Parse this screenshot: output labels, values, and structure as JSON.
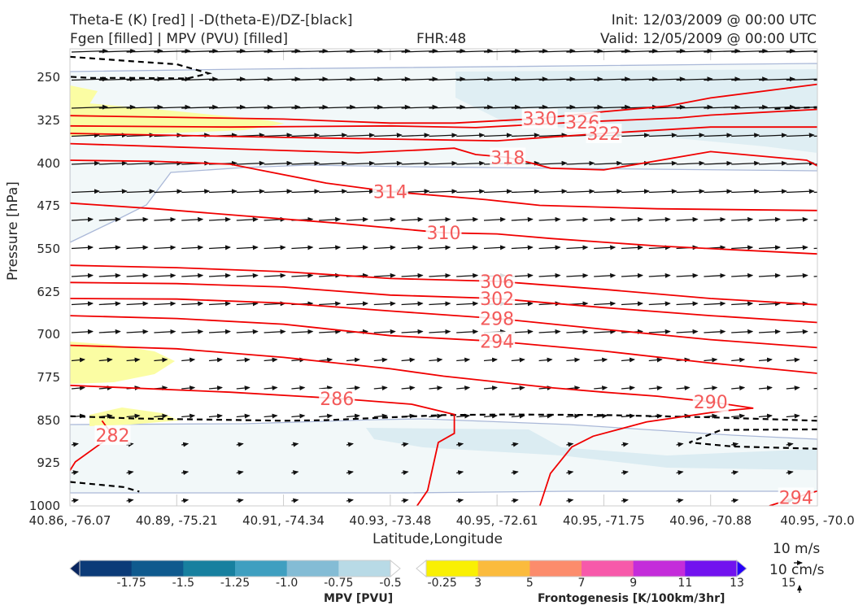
{
  "header": {
    "title_line1": "Theta-E (K) [red] | -D(theta-E)/DZ-[black]",
    "title_line2": "Fgen [filled] | MPV (PVU) [filled]",
    "fhr": "FHR:48",
    "init": "Init: 12/03/2009 @ 00:00 UTC",
    "valid": "Valid: 12/05/2009 @ 00:00 UTC"
  },
  "chart_data": {
    "type": "cross-section",
    "xlabel": "Latitude,Longitude",
    "ylabel": "Pressure [hPa]",
    "y_scale": "linear, inverted",
    "ylim": [
      1000,
      200
    ],
    "y_ticks": [
      "250",
      "325",
      "400",
      "475",
      "550",
      "625",
      "700",
      "775",
      "850",
      "925",
      "1000"
    ],
    "x_ticks": [
      "40.86, -76.07",
      "40.89, -75.21",
      "40.91, -74.34",
      "40.93, -73.48",
      "40.95, -72.61",
      "40.95, -71.75",
      "40.96, -70.88",
      "40.95, -70.0"
    ],
    "theta_e_contours": [
      {
        "label": "330",
        "pts": [
          [
            0,
            317
          ],
          [
            2,
            323
          ],
          [
            3,
            330
          ],
          [
            3.6,
            330
          ],
          [
            4.4,
            322
          ],
          [
            5,
            310
          ],
          [
            5.6,
            300
          ],
          [
            6,
            286
          ],
          [
            7,
            262
          ]
        ]
      },
      {
        "label": "326",
        "pts": [
          [
            0,
            335
          ],
          [
            1.5,
            337
          ],
          [
            3,
            335
          ],
          [
            3.8,
            338
          ],
          [
            4.8,
            328
          ],
          [
            5.7,
            321
          ],
          [
            6,
            316
          ],
          [
            7,
            306
          ]
        ]
      },
      {
        "label": "322",
        "pts": [
          [
            0,
            348
          ],
          [
            2,
            355
          ],
          [
            4,
            361
          ],
          [
            5,
            348
          ],
          [
            6,
            337
          ],
          [
            7,
            337
          ]
        ]
      },
      {
        "label": "318",
        "pts": [
          [
            0,
            366
          ],
          [
            1,
            372
          ],
          [
            2,
            378
          ],
          [
            2.7,
            382
          ],
          [
            3.3,
            377
          ],
          [
            3.6,
            374
          ],
          [
            3.8,
            385
          ],
          [
            4.1,
            390
          ],
          [
            4.3,
            399
          ],
          [
            4.5,
            409
          ],
          [
            5,
            412
          ],
          [
            6,
            380
          ],
          [
            6.9,
            395
          ],
          [
            7,
            405
          ]
        ]
      },
      {
        "label": "314",
        "pts": [
          [
            0,
            395
          ],
          [
            0.8,
            397
          ],
          [
            1.5,
            402
          ],
          [
            1.8,
            413
          ],
          [
            2.4,
            435
          ],
          [
            3,
            450
          ],
          [
            3.9,
            464
          ],
          [
            4.4,
            474
          ],
          [
            5.5,
            480
          ],
          [
            7,
            483
          ]
        ]
      },
      {
        "label": "310",
        "pts": [
          [
            0,
            470
          ],
          [
            0.8,
            480
          ],
          [
            1.6,
            492
          ],
          [
            2.5,
            505
          ],
          [
            3.5,
            522
          ],
          [
            4,
            524
          ],
          [
            4.5,
            532
          ],
          [
            5.5,
            545
          ],
          [
            7,
            559
          ]
        ]
      },
      {
        "label": "306",
        "pts": [
          [
            0,
            579
          ],
          [
            1,
            583
          ],
          [
            2,
            590
          ],
          [
            3,
            602
          ],
          [
            4,
            607
          ],
          [
            5,
            621
          ],
          [
            6,
            637
          ],
          [
            7,
            648
          ]
        ]
      },
      {
        "label": "302",
        "pts": [
          [
            0,
            609
          ],
          [
            1,
            611
          ],
          [
            2,
            617
          ],
          [
            3,
            631
          ],
          [
            4,
            637
          ],
          [
            5,
            653
          ],
          [
            6,
            667
          ],
          [
            7,
            679
          ]
        ]
      },
      {
        "label": "298",
        "pts": [
          [
            0,
            637
          ],
          [
            1,
            638
          ],
          [
            2,
            645
          ],
          [
            3,
            659
          ],
          [
            4,
            672
          ],
          [
            5,
            691
          ],
          [
            6,
            709
          ],
          [
            7,
            723
          ]
        ]
      },
      {
        "label": "294",
        "pts": [
          [
            0,
            667
          ],
          [
            1,
            672
          ],
          [
            2,
            682
          ],
          [
            3,
            702
          ],
          [
            4,
            712
          ],
          [
            5,
            729
          ],
          [
            6,
            750
          ],
          [
            7,
            768
          ]
        ]
      },
      {
        "label": "290",
        "pts": [
          [
            0,
            719
          ],
          [
            1,
            725
          ],
          [
            2,
            740
          ],
          [
            3,
            760
          ],
          [
            3.5,
            773
          ],
          [
            4.5,
            793
          ],
          [
            5,
            801
          ],
          [
            5.5,
            808
          ],
          [
            6,
            818
          ],
          [
            6.4,
            829
          ],
          [
            6.1,
            834
          ],
          [
            5.4,
            853
          ],
          [
            4.9,
            878
          ],
          [
            4.7,
            897
          ],
          [
            4.5,
            943
          ],
          [
            4.4,
            1000
          ]
        ]
      },
      {
        "label": "286",
        "pts": [
          [
            0,
            789
          ],
          [
            1.5,
            801
          ],
          [
            2.5,
            812
          ],
          [
            3.2,
            822
          ],
          [
            3.6,
            840
          ],
          [
            3.6,
            873
          ],
          [
            3.45,
            889
          ],
          [
            3.35,
            973
          ],
          [
            3.25,
            1000
          ]
        ]
      },
      {
        "label": "282",
        "pts": [
          [
            0.3,
            851
          ],
          [
            0.4,
            876
          ],
          [
            0.05,
            923
          ],
          [
            0,
            938
          ]
        ]
      },
      {
        "label": "294",
        "pts": [
          [
            6.55,
            1000
          ],
          [
            6.8,
            985
          ],
          [
            7,
            974
          ]
        ]
      }
    ],
    "stability_contours": [
      {
        "pts": [
          [
            0,
            214
          ],
          [
            0.6,
            222
          ],
          [
            1,
            227
          ],
          [
            1.3,
            243
          ],
          [
            1.1,
            252
          ],
          [
            0.6,
            251
          ],
          [
            0.2,
            251
          ],
          [
            0,
            249
          ]
        ]
      },
      {
        "pts": [
          [
            0,
            843
          ],
          [
            0.6,
            847
          ],
          [
            2,
            851
          ],
          [
            2.4,
            850
          ],
          [
            3,
            845
          ],
          [
            3.5,
            841
          ],
          [
            4.1,
            840
          ],
          [
            5,
            841
          ],
          [
            6,
            845
          ],
          [
            7,
            851
          ]
        ]
      },
      {
        "pts": [
          [
            0,
            958
          ],
          [
            0.5,
            967
          ],
          [
            0.65,
            975
          ]
        ]
      },
      {
        "pts": [
          [
            7,
            866
          ],
          [
            6.1,
            867
          ],
          [
            5.8,
            889
          ],
          [
            6.2,
            896
          ],
          [
            7,
            900
          ]
        ]
      },
      {
        "pts": [
          [
            6.6,
            305
          ],
          [
            7,
            302
          ]
        ]
      }
    ],
    "mpv_bins": [
      -1.75,
      -1.5,
      -1.25,
      -1.0,
      -0.75,
      -0.5,
      -0.25
    ],
    "mpv_colors": [
      "#08255f",
      "#0b3b78",
      "#0f5a8e",
      "#17809f",
      "#3f9fc0",
      "#84bcd5",
      "#b8dae6",
      "#ffffff"
    ],
    "mpv_label": "MPV [PVU]",
    "fgen_bins": [
      3,
      5,
      7,
      9,
      11,
      13,
      15
    ],
    "fgen_colors": [
      "#ffffff",
      "#f9f003",
      "#fbbb3d",
      "#fc8c6c",
      "#f759aa",
      "#c42cda",
      "#7212ef",
      "#2700f8"
    ],
    "fgen_label": "Frontogenesis [K/100km/3hr]",
    "wind_scale_h": "10 m/s",
    "wind_scale_v": "10 cm/s"
  }
}
